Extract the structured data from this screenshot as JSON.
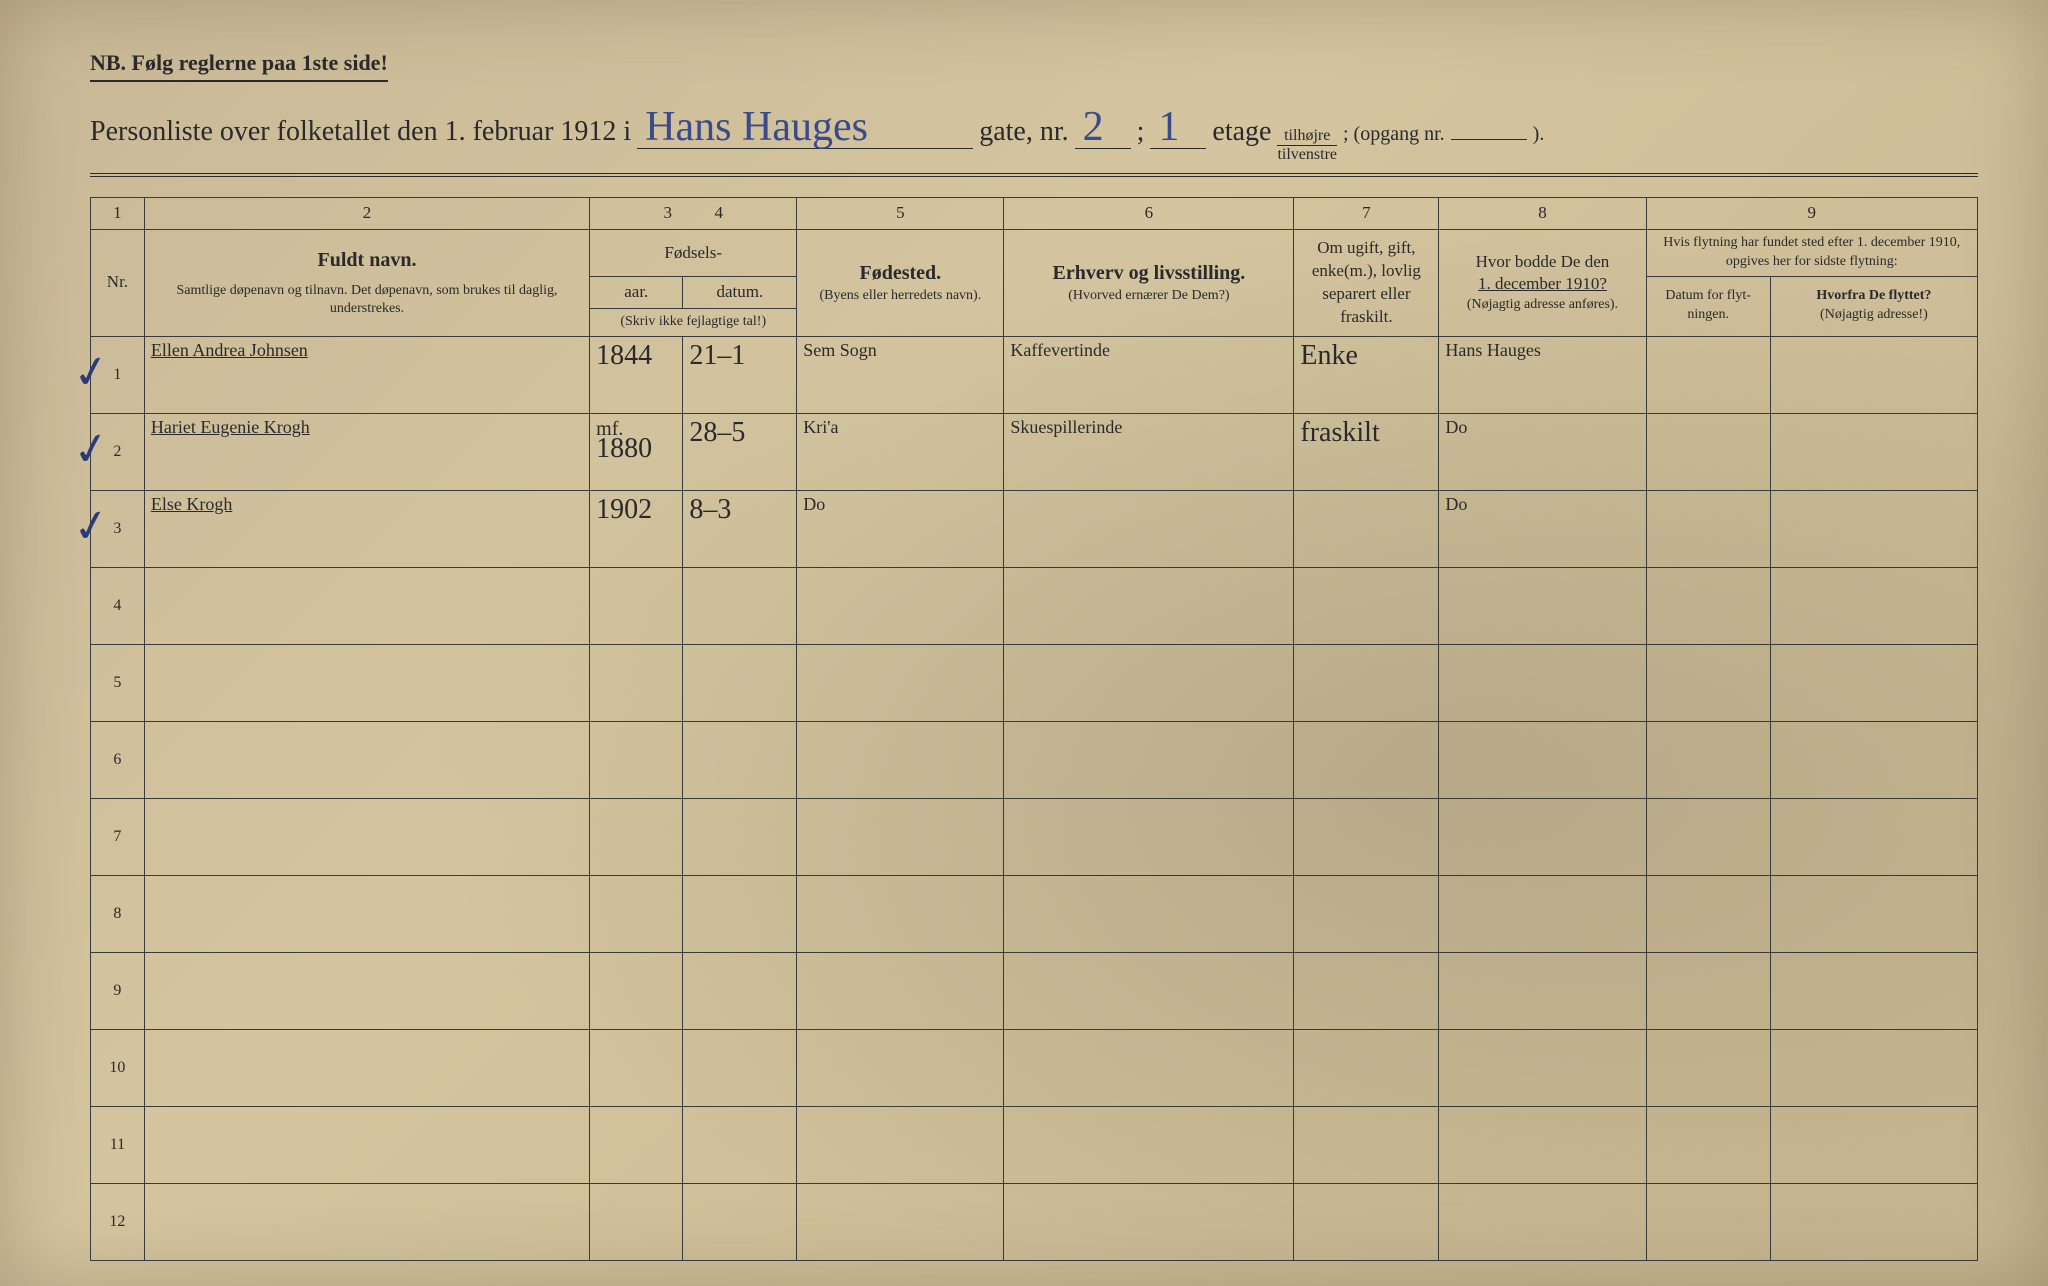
{
  "header": {
    "nb": "NB.   Følg reglerne paa 1ste side!",
    "title_prefix": "Personliste over folketallet den 1. februar 1912 i",
    "street": "Hans Hauges",
    "gate_label": "gate, nr.",
    "gate_nr": "2",
    "semicolon": ";",
    "etage_nr": "1",
    "etage_label": "etage",
    "fraction_top": "tilhøjre",
    "fraction_bot": "tilvenstre",
    "opgang_label": "; (opgang nr.",
    "opgang_nr": "",
    "closing": ")."
  },
  "columns": {
    "nums": [
      "1",
      "2",
      "3",
      "4",
      "5",
      "6",
      "7",
      "8",
      "9"
    ],
    "c1": "Nr.",
    "c2_bold": "Fuldt navn.",
    "c2_sub": "Samtlige døpenavn og tilnavn. Det døpenavn, som brukes til daglig, understrekes.",
    "c34_top": "Fødsels-",
    "c3": "aar.",
    "c4": "datum.",
    "c34_note": "(Skriv ikke fejlagtige tal!)",
    "c5_bold": "Fødested.",
    "c5_sub": "(Byens eller herredets navn).",
    "c6_bold": "Erhverv og livsstilling.",
    "c6_sub": "(Hvorved ernærer De Dem?)",
    "c7": "Om ugift, gift, enke(m.), lovlig separert eller fraskilt.",
    "c8_a": "Hvor bodde De den",
    "c8_b": "1. december 1910?",
    "c8_c": "(Nøjagtig adresse anføres).",
    "c9_top": "Hvis flytning har fundet sted efter 1. december 1910, opgives her for sidste flytning:",
    "c9a": "Datum for flyt-ningen.",
    "c9b_a": "Hvorfra De flyttet?",
    "c9b_b": "(Nøjagtig adresse!)"
  },
  "rows": [
    {
      "nr": "1",
      "check": true,
      "name": "Ellen Andrea Johnsen",
      "year": "1844",
      "date": "21–1",
      "birthplace": "Sem Sogn",
      "occupation": "Kaffevertinde",
      "status": "Enke",
      "addr1910": "Hans Hauges",
      "moved_date": "",
      "moved_from": ""
    },
    {
      "nr": "2",
      "check": true,
      "name": "Hariet Eugenie Krogh",
      "year_annot": "mf.",
      "year": "1880",
      "date": "28–5",
      "birthplace": "Kri'a",
      "occupation": "Skuespillerinde",
      "status": "fraskilt",
      "addr1910": "Do",
      "moved_date": "",
      "moved_from": ""
    },
    {
      "nr": "3",
      "check": true,
      "name": "Else Krogh",
      "year": "1902",
      "date": "8–3",
      "birthplace": "Do",
      "occupation": "",
      "status": "",
      "addr1910": "Do",
      "moved_date": "",
      "moved_from": ""
    },
    {
      "nr": "4"
    },
    {
      "nr": "5"
    },
    {
      "nr": "6"
    },
    {
      "nr": "7"
    },
    {
      "nr": "8"
    },
    {
      "nr": "9"
    },
    {
      "nr": "10"
    },
    {
      "nr": "11"
    },
    {
      "nr": "12"
    }
  ],
  "colors": {
    "paper": "#ccbd97",
    "ink_print": "#2a2a2a",
    "ink_handwritten": "#3a4a8a"
  }
}
